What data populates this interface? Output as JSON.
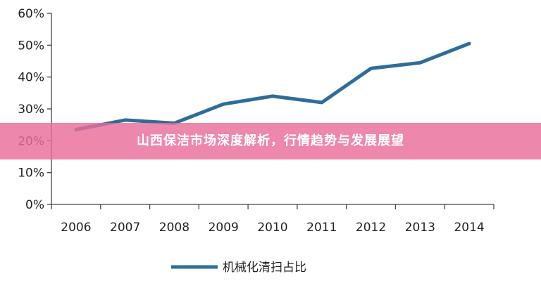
{
  "chart_data": {
    "type": "line",
    "title": "",
    "xlabel": "",
    "ylabel": "",
    "categories": [
      "2006",
      "2007",
      "2008",
      "2009",
      "2010",
      "2011",
      "2012",
      "2013",
      "2014"
    ],
    "series": [
      {
        "name": "机械化清扫占比",
        "values": [
          23.5,
          26.5,
          25.5,
          31.5,
          34,
          32,
          42.7,
          44.5,
          50.5
        ],
        "color": "#2E6D9A"
      }
    ],
    "ylim": [
      0,
      60
    ],
    "yticks": [
      "0%",
      "10%",
      "20%",
      "30%",
      "40%",
      "50%",
      "60%"
    ],
    "grid": false,
    "legend_position": "bottom"
  },
  "banner": {
    "title": "山西保洁市场深度解析，行情趋势与发展展望",
    "color": "#E96D98"
  }
}
